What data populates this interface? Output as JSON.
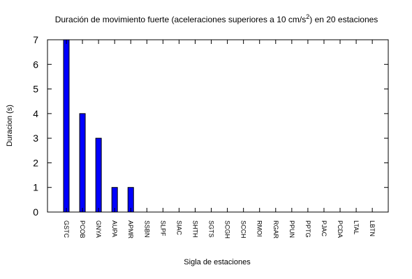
{
  "chart_data": {
    "type": "bar",
    "title_main": "Duración de movimiento fuerte (aceleraciones superiores a 10 cm/s",
    "title_sup": "2",
    "title_tail": ") en 20 estaciones",
    "xlabel": "Sigla de estaciones",
    "ylabel": "Duracion (s)",
    "ylim": [
      0,
      7
    ],
    "yticks": [
      "0",
      "1",
      "2",
      "3",
      "4",
      "5",
      "6",
      "7"
    ],
    "categories": [
      "GSTC",
      "PCOB",
      "GNYA",
      "AUPA",
      "APMR",
      "SSBN",
      "SLPF",
      "SIAC",
      "SHTH",
      "SGTS",
      "SCGH",
      "SCCH",
      "RMOI",
      "RGAR",
      "PPUN",
      "PPTG",
      "PJAC",
      "PCDA",
      "LTAL",
      "LBTN"
    ],
    "values": [
      7,
      4,
      3,
      1,
      1,
      0,
      0,
      0,
      0,
      0,
      0,
      0,
      0,
      0,
      0,
      0,
      0,
      0,
      0,
      0
    ],
    "bar_color": "#0000ff",
    "grid": false,
    "legend": "none"
  }
}
